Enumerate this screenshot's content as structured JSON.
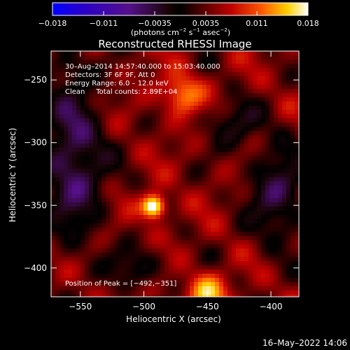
{
  "colorbar": {
    "ticks": [
      "−0.018",
      "−0.011",
      "−0.0035",
      "0.0035",
      "0.011",
      "0.018"
    ],
    "unit_label": "(photons cm",
    "unit_sup1": "−2",
    "unit_mid": " s",
    "unit_sup2": "−1",
    "unit_mid2": " asec",
    "unit_sup3": "−2",
    "unit_end": ")"
  },
  "chart_data": {
    "type": "heatmap",
    "title": "Reconstructed RHESSI Image",
    "xlabel": "Heliocentric X (arcsec)",
    "ylabel": "Heliocentric Y (arcsec)",
    "xlim": [
      -573,
      -378
    ],
    "ylim": [
      -423,
      -227
    ],
    "x_ticks": [
      "−550",
      "−500",
      "−450",
      "−400"
    ],
    "x_tick_values": [
      -550,
      -500,
      -450,
      -400
    ],
    "y_ticks": [
      "−250",
      "−300",
      "−350",
      "−400"
    ],
    "y_tick_values": [
      -250,
      -300,
      -350,
      -400
    ],
    "colorscale": {
      "min": -0.018,
      "max": 0.018
    },
    "peak": {
      "x": -492,
      "y": -351,
      "value": 0.018
    },
    "secondary_sources": [
      {
        "x": -470,
        "y": -262,
        "value": 0.009
      },
      {
        "x": -450,
        "y": -420,
        "value": 0.01
      }
    ],
    "annotations": [
      "30–Aug–2014 14:57:40.000 to 15:03:40.000",
      "Detectors: 3F 6F 9F, Att 0",
      "Energy Range: 6.0 – 12.0 keV",
      "Clean     Total counts: 2.89E+04"
    ],
    "peak_label": "Position of Peak = [−492,−351]"
  },
  "footer": {
    "timestamp": "16–May–2022 14:06"
  }
}
